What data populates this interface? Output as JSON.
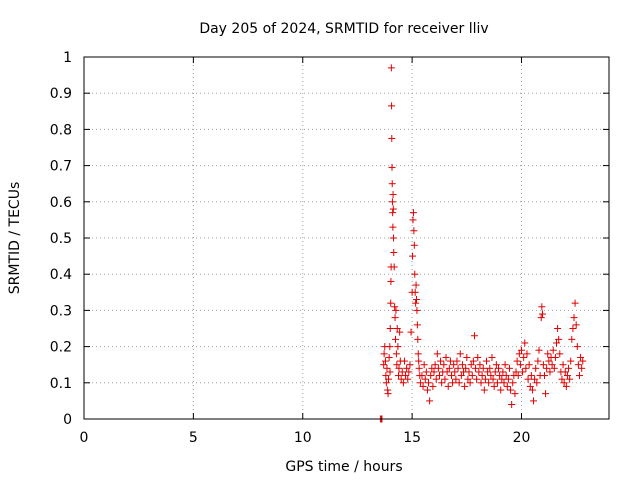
{
  "chart_data": {
    "type": "scatter",
    "title": "Day 205 of 2024, SRMTID for receiver lliv",
    "xlabel": "GPS time / hours",
    "ylabel": "SRMTID / TECUs",
    "xlim": [
      0,
      24
    ],
    "ylim": [
      0,
      1
    ],
    "xticks": [
      0,
      5,
      10,
      15,
      20
    ],
    "yticks": [
      0,
      0.1,
      0.2,
      0.3,
      0.4,
      0.5,
      0.6,
      0.7,
      0.8,
      0.9,
      1
    ],
    "ytick_labels": [
      "0",
      "0.1",
      "0.2",
      "0.3",
      "0.4",
      "0.5",
      "0.6",
      "0.7",
      "0.8",
      "0.9",
      "1"
    ],
    "grid": true,
    "marker": "+",
    "color": "#e00000",
    "series": [
      {
        "name": "SRMTID",
        "points": [
          [
            13.55,
            0.0
          ],
          [
            13.6,
            0.0
          ],
          [
            13.62,
            0.0
          ],
          [
            13.7,
            0.15
          ],
          [
            13.72,
            0.18
          ],
          [
            13.75,
            0.2
          ],
          [
            13.78,
            0.16
          ],
          [
            13.8,
            0.12
          ],
          [
            13.82,
            0.1
          ],
          [
            13.85,
            0.14
          ],
          [
            13.88,
            0.08
          ],
          [
            13.9,
            0.07
          ],
          [
            13.92,
            0.11
          ],
          [
            13.95,
            0.17
          ],
          [
            13.98,
            0.2
          ],
          [
            13.99,
            0.13
          ],
          [
            14.0,
            0.25
          ],
          [
            14.02,
            0.32
          ],
          [
            14.03,
            0.38
          ],
          [
            14.04,
            0.42
          ],
          [
            14.05,
            0.97
          ],
          [
            14.06,
            0.865
          ],
          [
            14.07,
            0.775
          ],
          [
            14.08,
            0.695
          ],
          [
            14.09,
            0.65
          ],
          [
            14.1,
            0.6
          ],
          [
            14.11,
            0.57
          ],
          [
            14.12,
            0.53
          ],
          [
            14.13,
            0.62
          ],
          [
            14.14,
            0.58
          ],
          [
            14.15,
            0.5
          ],
          [
            14.16,
            0.46
          ],
          [
            14.18,
            0.42
          ],
          [
            14.2,
            0.31
          ],
          [
            14.22,
            0.28
          ],
          [
            14.24,
            0.22
          ],
          [
            14.26,
            0.3
          ],
          [
            14.28,
            0.18
          ],
          [
            14.3,
            0.15
          ],
          [
            14.32,
            0.25
          ],
          [
            14.35,
            0.2
          ],
          [
            14.38,
            0.12
          ],
          [
            14.4,
            0.14
          ],
          [
            14.43,
            0.24
          ],
          [
            14.46,
            0.16
          ],
          [
            14.5,
            0.11
          ],
          [
            14.55,
            0.13
          ],
          [
            14.6,
            0.1
          ],
          [
            14.65,
            0.16
          ],
          [
            14.7,
            0.12
          ],
          [
            14.75,
            0.14
          ],
          [
            14.8,
            0.11
          ],
          [
            14.85,
            0.13
          ],
          [
            14.9,
            0.15
          ],
          [
            14.95,
            0.24
          ],
          [
            15.0,
            0.35
          ],
          [
            15.02,
            0.45
          ],
          [
            15.04,
            0.55
          ],
          [
            15.06,
            0.57
          ],
          [
            15.08,
            0.52
          ],
          [
            15.1,
            0.48
          ],
          [
            15.12,
            0.4
          ],
          [
            15.14,
            0.35
          ],
          [
            15.16,
            0.32
          ],
          [
            15.18,
            0.37
          ],
          [
            15.2,
            0.33
          ],
          [
            15.22,
            0.3
          ],
          [
            15.24,
            0.26
          ],
          [
            15.26,
            0.22
          ],
          [
            15.28,
            0.18
          ],
          [
            15.3,
            0.16
          ],
          [
            15.32,
            0.14
          ],
          [
            15.35,
            0.12
          ],
          [
            15.38,
            0.1
          ],
          [
            15.45,
            0.12
          ],
          [
            15.5,
            0.09
          ],
          [
            15.55,
            0.15
          ],
          [
            15.6,
            0.11
          ],
          [
            15.65,
            0.13
          ],
          [
            15.7,
            0.08
          ],
          [
            15.75,
            0.1
          ],
          [
            15.8,
            0.05
          ],
          [
            15.85,
            0.12
          ],
          [
            15.9,
            0.14
          ],
          [
            15.95,
            0.09
          ],
          [
            16.0,
            0.13
          ],
          [
            16.05,
            0.15
          ],
          [
            16.1,
            0.11
          ],
          [
            16.15,
            0.18
          ],
          [
            16.2,
            0.14
          ],
          [
            16.25,
            0.12
          ],
          [
            16.3,
            0.16
          ],
          [
            16.35,
            0.1
          ],
          [
            16.4,
            0.13
          ],
          [
            16.45,
            0.15
          ],
          [
            16.5,
            0.11
          ],
          [
            16.55,
            0.17
          ],
          [
            16.6,
            0.13
          ],
          [
            16.65,
            0.09
          ],
          [
            16.7,
            0.14
          ],
          [
            16.75,
            0.16
          ],
          [
            16.8,
            0.12
          ],
          [
            16.85,
            0.1
          ],
          [
            16.9,
            0.15
          ],
          [
            16.95,
            0.13
          ],
          [
            17.0,
            0.11
          ],
          [
            17.05,
            0.16
          ],
          [
            17.1,
            0.14
          ],
          [
            17.15,
            0.1
          ],
          [
            17.2,
            0.18
          ],
          [
            17.25,
            0.12
          ],
          [
            17.3,
            0.15
          ],
          [
            17.35,
            0.13
          ],
          [
            17.4,
            0.09
          ],
          [
            17.45,
            0.14
          ],
          [
            17.5,
            0.17
          ],
          [
            17.55,
            0.11
          ],
          [
            17.6,
            0.13
          ],
          [
            17.65,
            0.1
          ],
          [
            17.7,
            0.15
          ],
          [
            17.75,
            0.12
          ],
          [
            17.8,
            0.16
          ],
          [
            17.85,
            0.23
          ],
          [
            17.9,
            0.14
          ],
          [
            17.95,
            0.11
          ],
          [
            18.0,
            0.17
          ],
          [
            18.05,
            0.13
          ],
          [
            18.1,
            0.15
          ],
          [
            18.15,
            0.1
          ],
          [
            18.2,
            0.12
          ],
          [
            18.25,
            0.14
          ],
          [
            18.3,
            0.08
          ],
          [
            18.35,
            0.11
          ],
          [
            18.4,
            0.16
          ],
          [
            18.45,
            0.13
          ],
          [
            18.5,
            0.1
          ],
          [
            18.55,
            0.14
          ],
          [
            18.6,
            0.12
          ],
          [
            18.65,
            0.17
          ],
          [
            18.7,
            0.11
          ],
          [
            18.75,
            0.09
          ],
          [
            18.8,
            0.13
          ],
          [
            18.85,
            0.15
          ],
          [
            18.9,
            0.1
          ],
          [
            18.95,
            0.14
          ],
          [
            19.0,
            0.12
          ],
          [
            19.05,
            0.08
          ],
          [
            19.1,
            0.11
          ],
          [
            19.15,
            0.13
          ],
          [
            19.2,
            0.1
          ],
          [
            19.25,
            0.15
          ],
          [
            19.3,
            0.12
          ],
          [
            19.35,
            0.09
          ],
          [
            19.4,
            0.11
          ],
          [
            19.45,
            0.14
          ],
          [
            19.5,
            0.08
          ],
          [
            19.55,
            0.04
          ],
          [
            19.6,
            0.1
          ],
          [
            19.65,
            0.12
          ],
          [
            19.7,
            0.07
          ],
          [
            19.75,
            0.13
          ],
          [
            19.8,
            0.16
          ],
          [
            19.85,
            0.12
          ],
          [
            19.9,
            0.18
          ],
          [
            19.95,
            0.15
          ],
          [
            20.0,
            0.19
          ],
          [
            20.05,
            0.13
          ],
          [
            20.1,
            0.17
          ],
          [
            20.15,
            0.21
          ],
          [
            20.2,
            0.14
          ],
          [
            20.25,
            0.18
          ],
          [
            20.3,
            0.11
          ],
          [
            20.35,
            0.15
          ],
          [
            20.4,
            0.09
          ],
          [
            20.45,
            0.12
          ],
          [
            20.5,
            0.08
          ],
          [
            20.55,
            0.05
          ],
          [
            20.6,
            0.11
          ],
          [
            20.65,
            0.14
          ],
          [
            20.7,
            0.1
          ],
          [
            20.75,
            0.16
          ],
          [
            20.8,
            0.19
          ],
          [
            20.85,
            0.12
          ],
          [
            20.9,
            0.28
          ],
          [
            20.93,
            0.31
          ],
          [
            20.96,
            0.29
          ],
          [
            21.0,
            0.15
          ],
          [
            21.05,
            0.12
          ],
          [
            21.1,
            0.07
          ],
          [
            21.15,
            0.14
          ],
          [
            21.2,
            0.18
          ],
          [
            21.25,
            0.16
          ],
          [
            21.3,
            0.13
          ],
          [
            21.35,
            0.17
          ],
          [
            21.4,
            0.15
          ],
          [
            21.45,
            0.19
          ],
          [
            21.5,
            0.14
          ],
          [
            21.55,
            0.17
          ],
          [
            21.6,
            0.21
          ],
          [
            21.65,
            0.25
          ],
          [
            21.7,
            0.22
          ],
          [
            21.75,
            0.18
          ],
          [
            21.8,
            0.13
          ],
          [
            21.85,
            0.11
          ],
          [
            21.9,
            0.15
          ],
          [
            21.95,
            0.1
          ],
          [
            22.0,
            0.13
          ],
          [
            22.05,
            0.09
          ],
          [
            22.1,
            0.12
          ],
          [
            22.15,
            0.14
          ],
          [
            22.2,
            0.11
          ],
          [
            22.25,
            0.16
          ],
          [
            22.3,
            0.22
          ],
          [
            22.35,
            0.25
          ],
          [
            22.4,
            0.28
          ],
          [
            22.45,
            0.32
          ],
          [
            22.5,
            0.26
          ],
          [
            22.55,
            0.2
          ],
          [
            22.6,
            0.15
          ],
          [
            22.65,
            0.12
          ],
          [
            22.7,
            0.17
          ],
          [
            22.75,
            0.14
          ],
          [
            22.8,
            0.16
          ]
        ]
      }
    ]
  }
}
